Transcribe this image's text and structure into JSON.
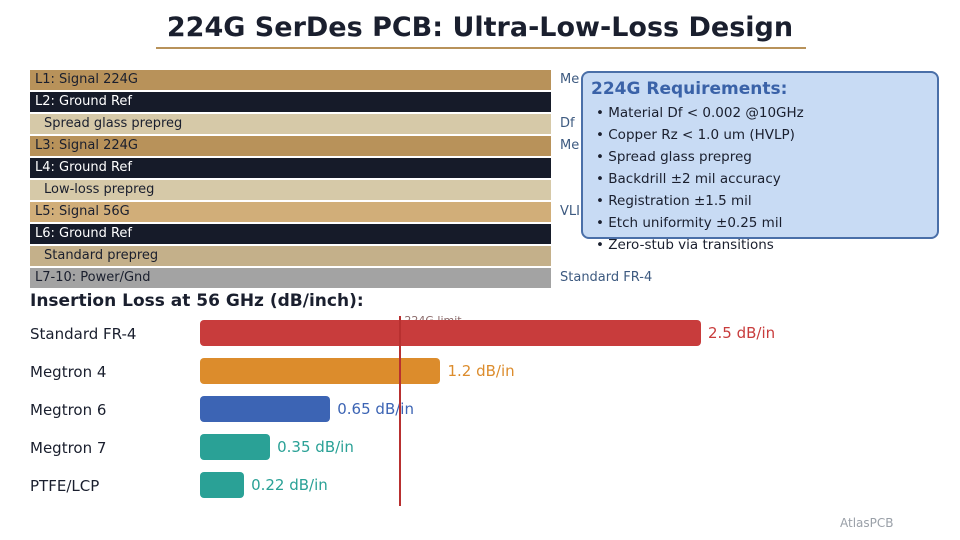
{
  "title": "224G SerDes PCB: Ultra-Low-Loss Design",
  "colors": {
    "signal": "#b8925a",
    "ground": "#161b29",
    "prepreg_light": "#d6c9a8",
    "signal_56g": "#d1ae79",
    "standard_prepreg": "#c4b08a",
    "power": "#a3a3a3",
    "material_text": "#3d5a80",
    "box_fill": "#c8dbf4",
    "box_border": "#4a6fa8"
  },
  "stackup": [
    {
      "label": "L1: Signal 224G",
      "kind": "signal",
      "material": "Me"
    },
    {
      "label": "L2: Ground Ref",
      "kind": "ground",
      "material": ""
    },
    {
      "label": "Spread glass prepreg",
      "kind": "prepreg_light",
      "material": "Df"
    },
    {
      "label": "L3: Signal 224G",
      "kind": "signal",
      "material": "Me"
    },
    {
      "label": "L4: Ground Ref",
      "kind": "ground",
      "material": ""
    },
    {
      "label": "Low-loss prepreg",
      "kind": "prepreg_light",
      "material": ""
    },
    {
      "label": "L5: Signal 56G",
      "kind": "signal_56g",
      "material": "VLI"
    },
    {
      "label": "L6: Ground Ref",
      "kind": "ground",
      "material": ""
    },
    {
      "label": "Standard prepreg",
      "kind": "standard_prepreg",
      "material": ""
    },
    {
      "label": "L7-10: Power/Gnd",
      "kind": "power",
      "material": "Standard FR-4"
    }
  ],
  "requirements": {
    "title": "224G Requirements:",
    "items": [
      "• Material Df < 0.002 @10GHz",
      "• Copper Rz < 1.0 um (HVLP)",
      "• Spread glass prepreg",
      "• Backdrill ±2 mil accuracy",
      "• Registration ±1.5 mil",
      "• Etch uniformity ±0.25 mil",
      "• Zero-stub via transitions"
    ]
  },
  "chart_data": {
    "type": "bar",
    "orientation": "horizontal",
    "title": "Insertion Loss at 56 GHz (dB/inch):",
    "categories": [
      "Standard FR-4",
      "Megtron 4",
      "Megtron 6",
      "Megtron 7",
      "PTFE/LCP"
    ],
    "values": [
      2.5,
      1.2,
      0.65,
      0.35,
      0.22
    ],
    "value_labels": [
      "2.5 dB/in",
      "1.2 dB/in",
      "0.65 dB/in",
      "0.35 dB/in",
      "0.22 dB/in"
    ],
    "colors": [
      "#c83c3c",
      "#dc8c2c",
      "#3c64b4",
      "#2aa196",
      "#2aa196"
    ],
    "limit": {
      "value": 1.0,
      "label": "224G limit"
    },
    "xlim": [
      0,
      2.5
    ]
  },
  "brand": "AtlasPCB"
}
